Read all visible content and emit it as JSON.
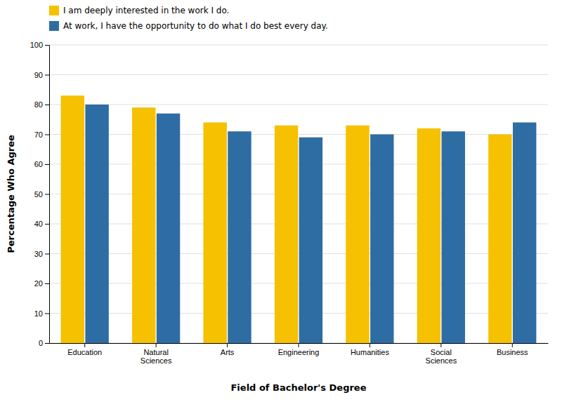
{
  "chart_data": {
    "type": "bar",
    "categories": [
      "Education",
      "Natural\nSciences",
      "Arts",
      "Engineering",
      "Humanities",
      "Social\nSciences",
      "Business"
    ],
    "series": [
      {
        "name": "I am deeply interested in the work I do.",
        "color": "#F5C100",
        "values": [
          83,
          79,
          74,
          73,
          73,
          72,
          70
        ]
      },
      {
        "name": "At work, I have the opportunity to do what I do best every day.",
        "color": "#2E6DA4",
        "values": [
          80,
          77,
          71,
          69,
          70,
          71,
          74
        ]
      }
    ],
    "xlabel": "Field of Bachelor's Degree",
    "ylabel": "Percentage Who Agree",
    "ylim": [
      0,
      100
    ],
    "yticks": [
      0,
      10,
      20,
      30,
      40,
      50,
      60,
      70,
      80,
      90,
      100
    ],
    "grid": true,
    "legend": "upper left"
  }
}
